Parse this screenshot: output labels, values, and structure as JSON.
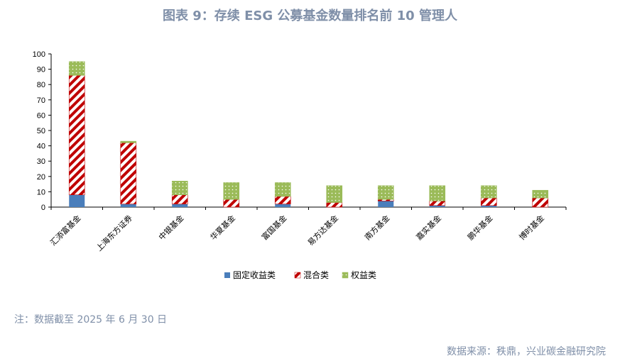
{
  "title": "图表 9：存续 ESG 公募基金数量排名前 10 管理人",
  "note": "注：数据截至 2025 年 6 月 30 日",
  "source": "数据来源：秩鼎，兴业碳金融研究院",
  "chart_data": {
    "type": "bar",
    "stacked": true,
    "categories": [
      "汇添富基金",
      "上海东方证券",
      "中银基金",
      "华夏基金",
      "富国基金",
      "易方达基金",
      "南方基金",
      "嘉实基金",
      "鹏华基金",
      "博时基金"
    ],
    "series": [
      {
        "name": "固定收益类",
        "color": "#4a7ebb",
        "pattern": "solid",
        "values": [
          8,
          2,
          2,
          0,
          2,
          0,
          4,
          1,
          1,
          0
        ]
      },
      {
        "name": "混合类",
        "color": "#c00000",
        "pattern": "diagonal-stripes",
        "values": [
          78,
          40,
          6,
          5,
          5,
          3,
          1,
          3,
          5,
          6
        ]
      },
      {
        "name": "权益类",
        "color": "#9bbb59",
        "pattern": "dots",
        "values": [
          9,
          1,
          9,
          11,
          9,
          11,
          9,
          10,
          8,
          5
        ]
      }
    ],
    "yticks": [
      0,
      10,
      20,
      30,
      40,
      50,
      60,
      70,
      80,
      90,
      100
    ],
    "ylim": [
      0,
      100
    ],
    "xlabel": "",
    "ylabel": "",
    "legend_position": "bottom",
    "grid": false
  }
}
